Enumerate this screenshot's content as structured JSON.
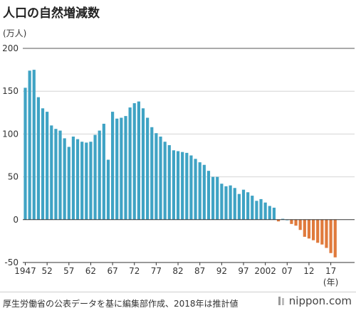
{
  "title": "人口の自然増減数",
  "source": "厚生労働省の公表データを基に編集部作成、2018年は推計値",
  "logo_text": "nippon.com",
  "colors": {
    "positive": "#3fa3c4",
    "negative": "#e07a3c",
    "axis": "#333333",
    "grid": "#d4d4d4"
  },
  "chart_data": {
    "type": "bar",
    "ylabel": "(万人)",
    "ylim": [
      -50,
      200
    ],
    "yticks": [
      -50,
      0,
      50,
      100,
      150,
      200
    ],
    "xtick_labels": [
      {
        "year": 1947,
        "label": "1947"
      },
      {
        "year": 1952,
        "label": "52"
      },
      {
        "year": 1957,
        "label": "57"
      },
      {
        "year": 1962,
        "label": "62"
      },
      {
        "year": 1967,
        "label": "67"
      },
      {
        "year": 1972,
        "label": "72"
      },
      {
        "year": 1977,
        "label": "77"
      },
      {
        "year": 1982,
        "label": "82"
      },
      {
        "year": 1987,
        "label": "87"
      },
      {
        "year": 1992,
        "label": "92"
      },
      {
        "year": 1997,
        "label": "97"
      },
      {
        "year": 2002,
        "label": "2002"
      },
      {
        "year": 2007,
        "label": "07"
      },
      {
        "year": 2012,
        "label": "12"
      },
      {
        "year": 2017,
        "label": "17"
      }
    ],
    "x_unit_label": "(年)",
    "grid": true,
    "x": [
      1947,
      1948,
      1949,
      1950,
      1951,
      1952,
      1953,
      1954,
      1955,
      1956,
      1957,
      1958,
      1959,
      1960,
      1961,
      1962,
      1963,
      1964,
      1965,
      1966,
      1967,
      1968,
      1969,
      1970,
      1971,
      1972,
      1973,
      1974,
      1975,
      1976,
      1977,
      1978,
      1979,
      1980,
      1981,
      1982,
      1983,
      1984,
      1985,
      1986,
      1987,
      1988,
      1989,
      1990,
      1991,
      1992,
      1993,
      1994,
      1995,
      1996,
      1997,
      1998,
      1999,
      2000,
      2001,
      2002,
      2003,
      2004,
      2005,
      2006,
      2007,
      2008,
      2009,
      2010,
      2011,
      2012,
      2013,
      2014,
      2015,
      2016,
      2017,
      2018
    ],
    "values": [
      154,
      174,
      175,
      143,
      130,
      126,
      110,
      106,
      104,
      95,
      85,
      97,
      94,
      91,
      90,
      91,
      99,
      104,
      112,
      70,
      126,
      118,
      119,
      121,
      131,
      136,
      138,
      130,
      119,
      108,
      101,
      97,
      91,
      87,
      81,
      80,
      79,
      78,
      75,
      71,
      67,
      64,
      57,
      50,
      50,
      42,
      39,
      40,
      37,
      30,
      35,
      32,
      28,
      22,
      24,
      20,
      16,
      14,
      -2,
      1,
      0,
      -5,
      -7,
      -12,
      -20,
      -22,
      -24,
      -27,
      -29,
      -33,
      -39,
      -44
    ]
  }
}
